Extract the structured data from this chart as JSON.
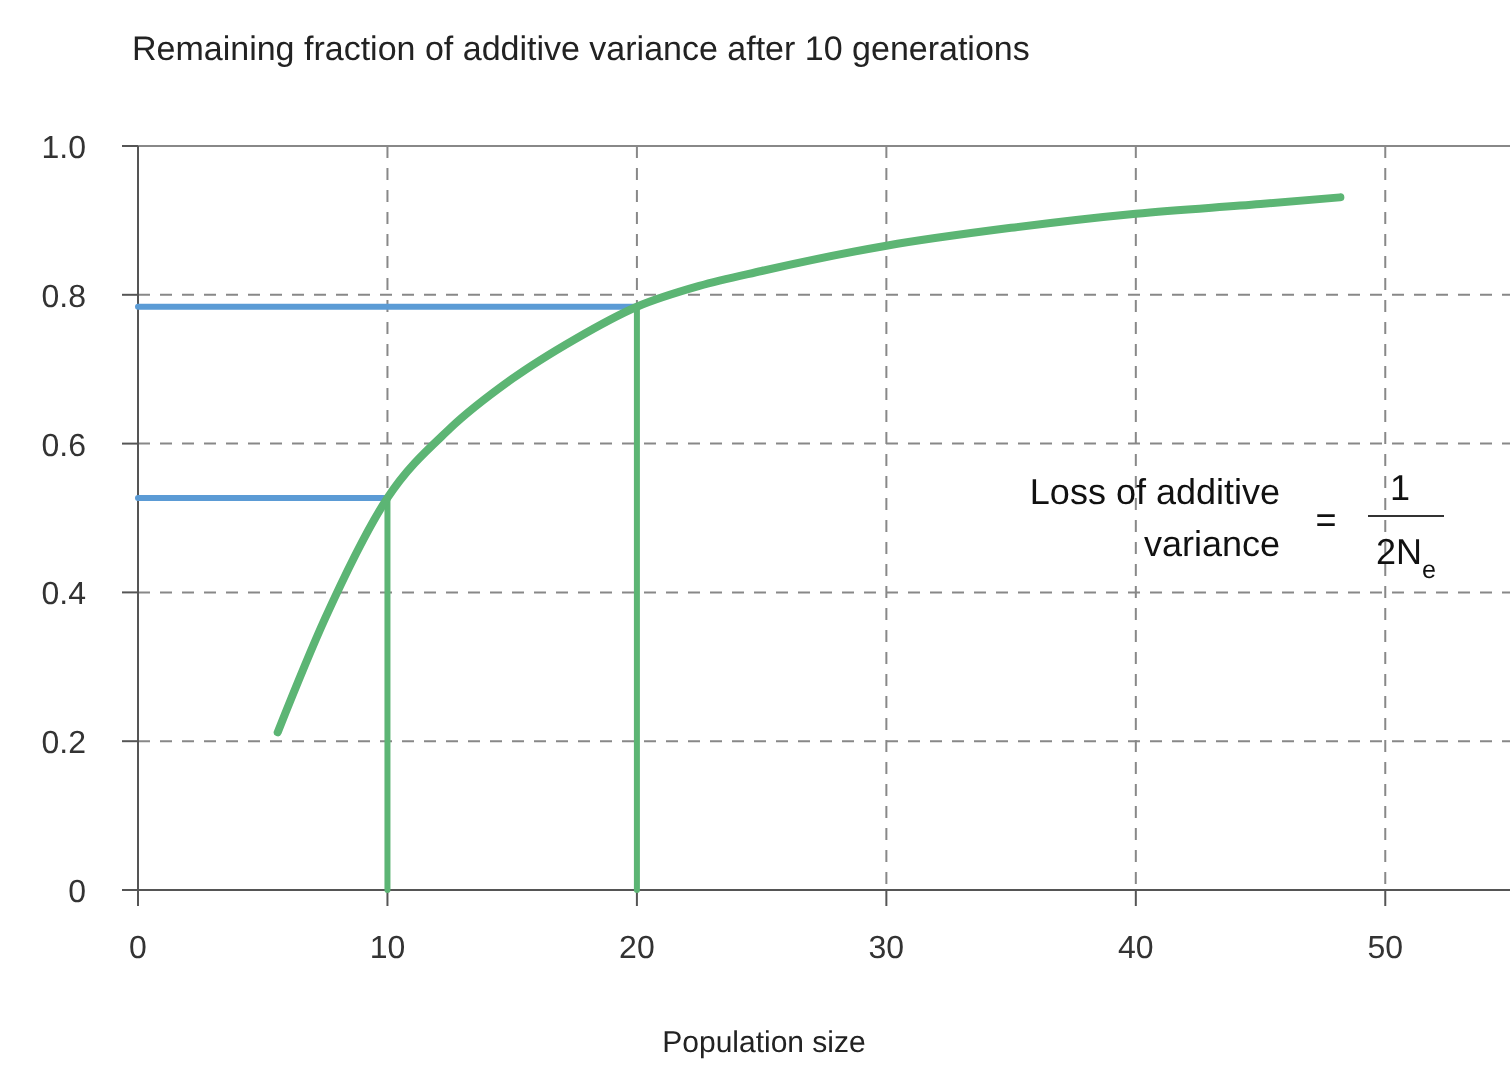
{
  "chart_data": {
    "type": "line",
    "title": "Remaining fraction of additive variance after 10 generations",
    "xlabel": "Population size",
    "xlim": [
      0,
      55
    ],
    "xticks": [
      0,
      10,
      20,
      30,
      40,
      50
    ],
    "ylim": [
      0,
      1
    ],
    "yticks": [
      0,
      0.2,
      0.4,
      0.6,
      0.8,
      {
        "value": 1,
        "label": "1.0"
      }
    ],
    "grid": true,
    "marker": "none",
    "line_style": "solid",
    "series": [
      {
        "color": "#5b9bd5",
        "x": [
          0,
          10
        ],
        "values": [
          0.527,
          0.527
        ]
      },
      {
        "color": "#5b9bd5",
        "x": [
          0,
          20
        ],
        "values": [
          0.784,
          0.784
        ]
      },
      {
        "color": "#5cb574",
        "x": [
          10,
          10
        ],
        "values": [
          0,
          0.527
        ]
      },
      {
        "color": "#5cb574",
        "x": [
          20,
          20
        ],
        "values": [
          0,
          0.784
        ]
      },
      {
        "color": "#5cb574",
        "x": [
          5.6,
          7.5,
          10,
          12.5,
          15,
          17.5,
          20,
          22.5,
          25,
          30,
          35,
          40,
          45,
          48.2
        ],
        "values": [
          0.212,
          0.365,
          0.527,
          0.62,
          0.687,
          0.74,
          0.784,
          0.812,
          0.832,
          0.866,
          0.89,
          0.909,
          0.922,
          0.931
        ]
      }
    ],
    "annotations": [
      "Loss of additive variance",
      "=",
      "1",
      "2N$_{e}$"
    ]
  }
}
